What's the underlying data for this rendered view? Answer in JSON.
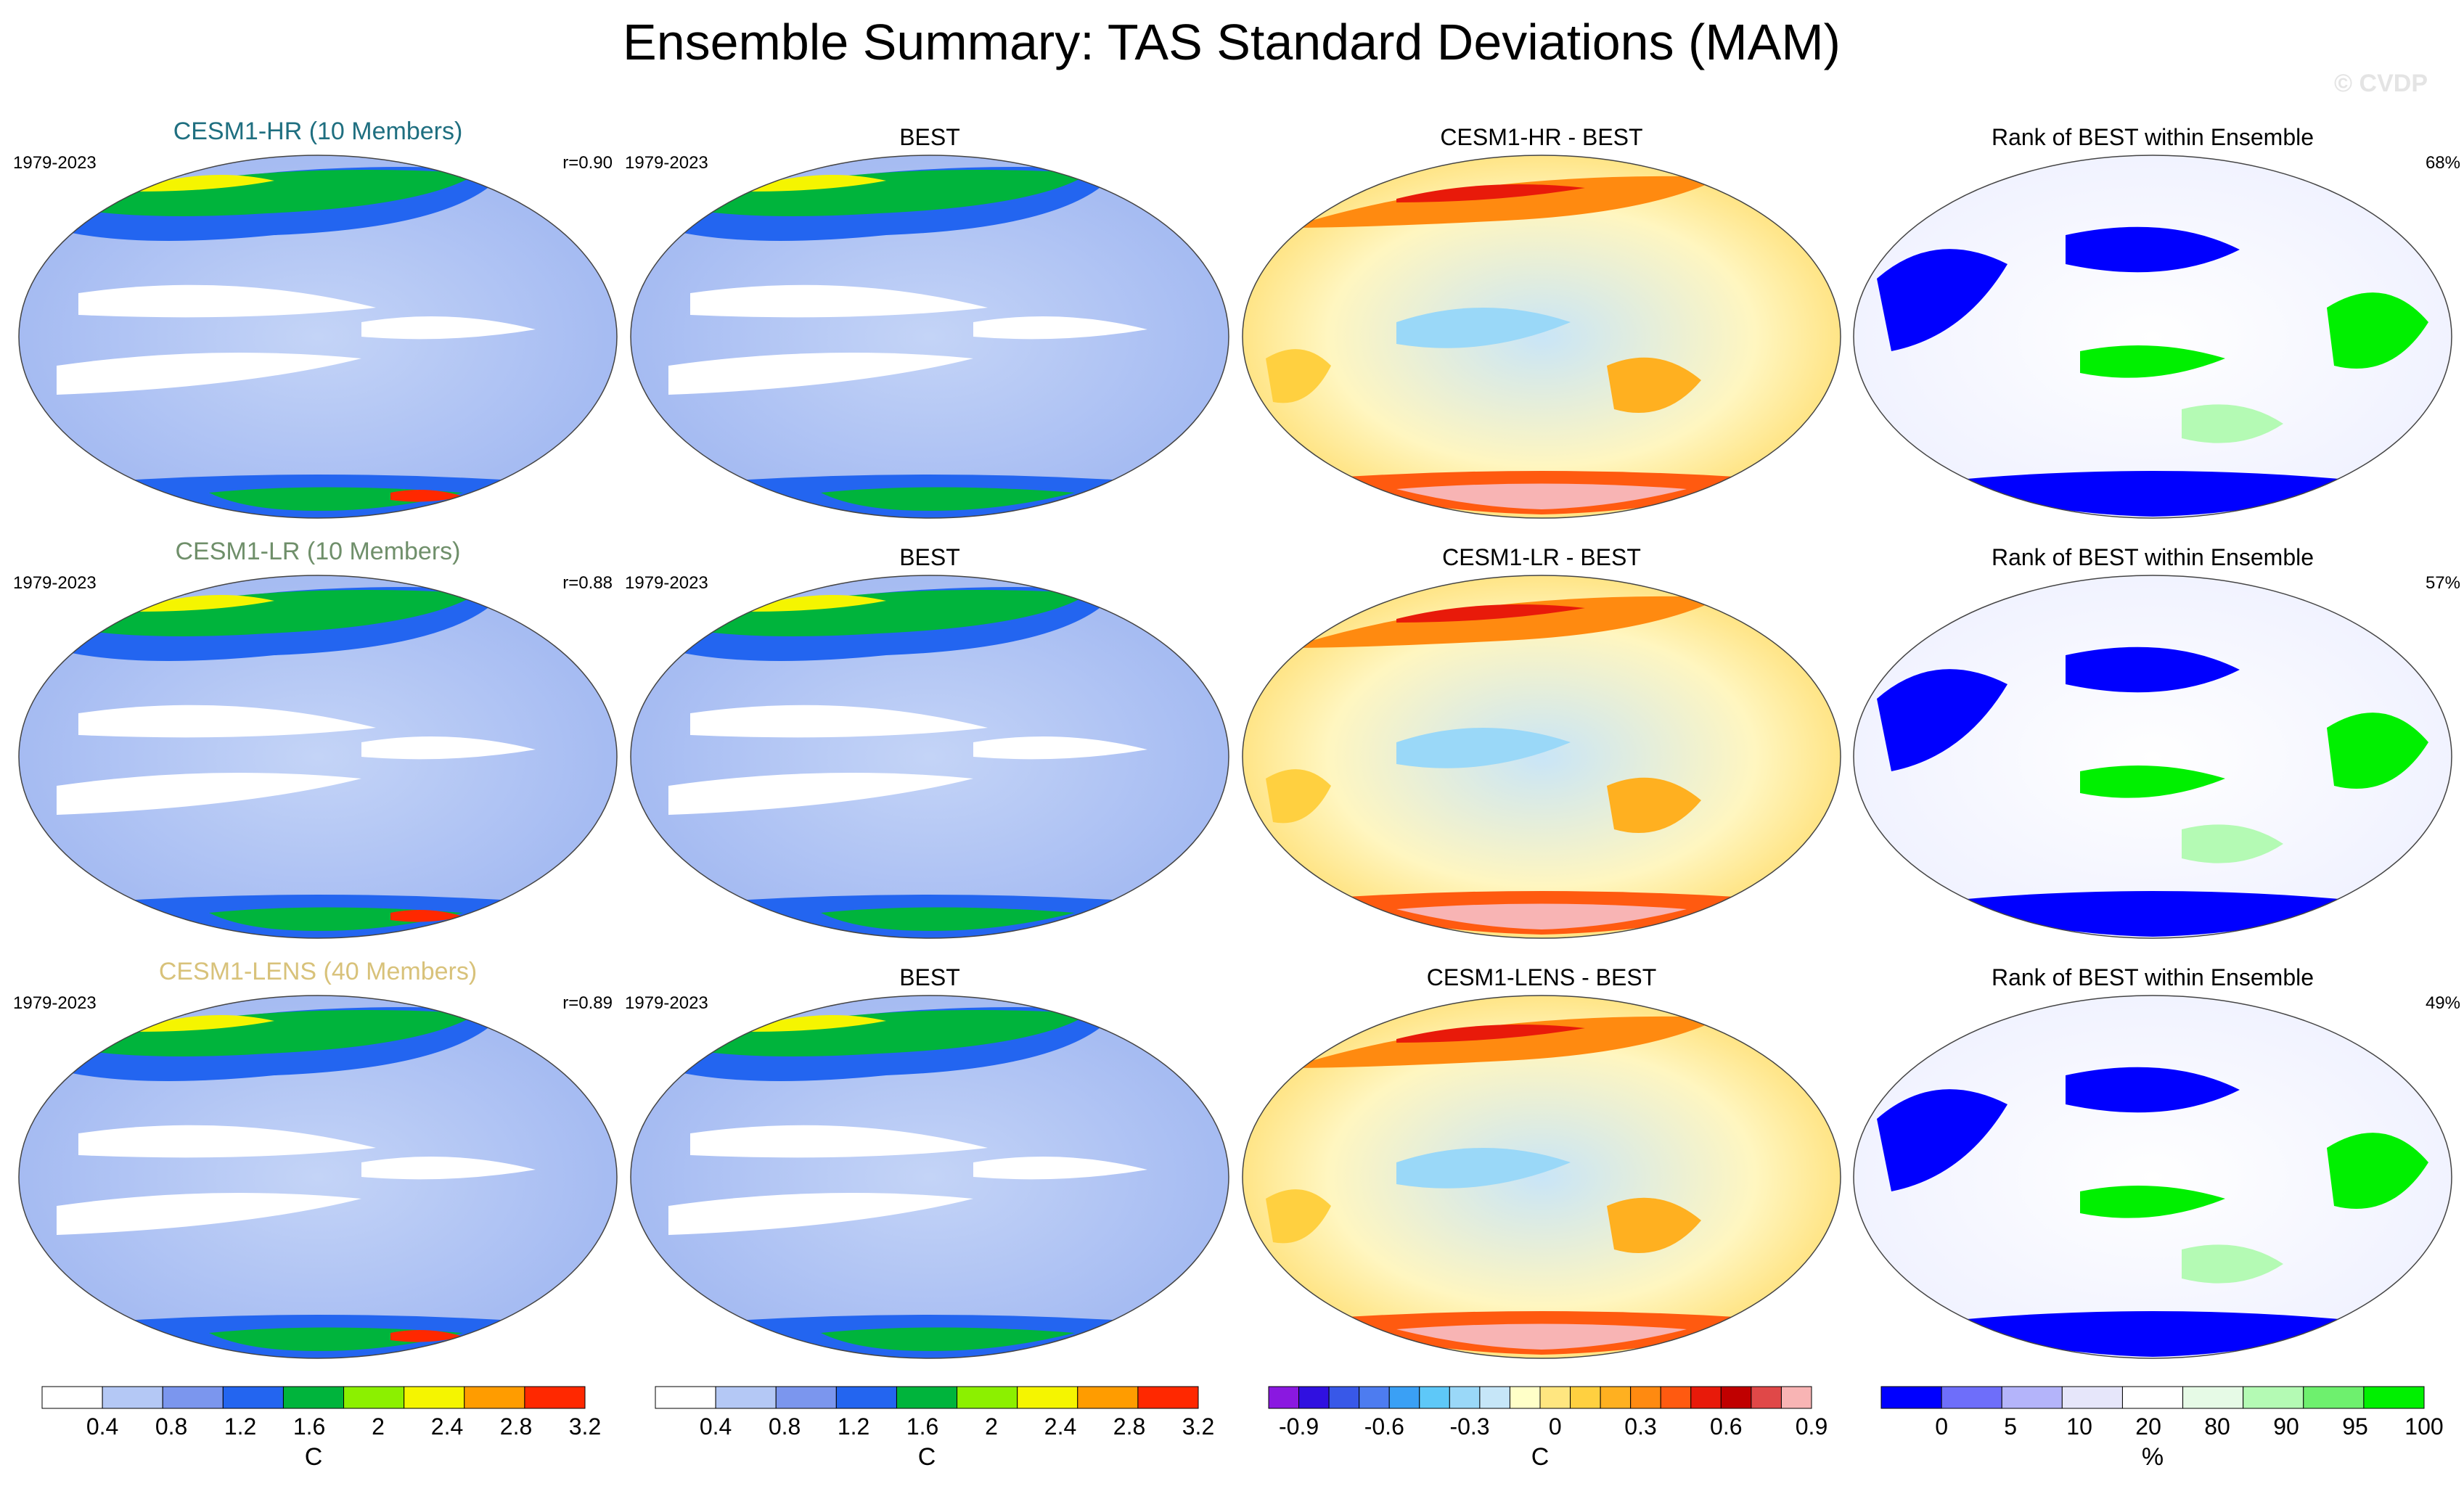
{
  "title": "Ensemble Summary: TAS Standard Deviations (MAM)",
  "watermark": "© CVDP",
  "chart_data": {
    "type": "heatmap",
    "description_rows": 3,
    "description_cols": 4,
    "rows": [
      {
        "model_label": "CESM1-HR (10 Members)",
        "model_color": "#1f6f80",
        "period": "1979-2023",
        "obs_period": "1979-2023",
        "pattern_r": "r=0.90",
        "obs_title": "BEST",
        "diff_title": "CESM1-HR - BEST",
        "rank_title": "Rank of BEST within Ensemble",
        "rank_pct": "68%"
      },
      {
        "model_label": "CESM1-LR (10 Members)",
        "model_color": "#6f8f6a",
        "period": "1979-2023",
        "obs_period": "1979-2023",
        "pattern_r": "r=0.88",
        "obs_title": "BEST",
        "diff_title": "CESM1-LR - BEST",
        "rank_title": "Rank of BEST within Ensemble",
        "rank_pct": "57%"
      },
      {
        "model_label": "CESM1-LENS (40 Members)",
        "model_color": "#d8c27a",
        "period": "1979-2023",
        "obs_period": "1979-2023",
        "pattern_r": "r=0.89",
        "obs_title": "BEST",
        "diff_title": "CESM1-LENS - BEST",
        "rank_title": "Rank of BEST within Ensemble",
        "rank_pct": "49%"
      }
    ],
    "colorbars": [
      {
        "name": "std-dev-model",
        "unit": "C",
        "colors": [
          "#ffffff",
          "#b4c8f5",
          "#7b96ee",
          "#2365f0",
          "#00b43c",
          "#8cf000",
          "#f5f500",
          "#ff9c00",
          "#ff2800"
        ],
        "ticks": [
          "0.4",
          "0.8",
          "1.2",
          "1.6",
          "2",
          "2.4",
          "2.8",
          "3.2"
        ]
      },
      {
        "name": "std-dev-obs",
        "unit": "C",
        "colors": [
          "#ffffff",
          "#b4c8f5",
          "#7b96ee",
          "#2365f0",
          "#00b43c",
          "#8cf000",
          "#f5f500",
          "#ff9c00",
          "#ff2800"
        ],
        "ticks": [
          "0.4",
          "0.8",
          "1.2",
          "1.6",
          "2",
          "2.4",
          "2.8",
          "3.2"
        ]
      },
      {
        "name": "difference",
        "unit": "C",
        "colors": [
          "#8a18e0",
          "#3010e0",
          "#3858e8",
          "#4d7cf0",
          "#3aa0f5",
          "#5ec8f8",
          "#9ad8f8",
          "#c6e6f8",
          "#ffffc8",
          "#ffe680",
          "#ffd040",
          "#ffb020",
          "#ff8a10",
          "#ff5a10",
          "#e81a0a",
          "#c00000",
          "#e04848",
          "#f8b4b4"
        ],
        "ticks": [
          "-0.9",
          "-0.6",
          "-0.3",
          "0",
          "0.3",
          "0.6",
          "0.9"
        ]
      },
      {
        "name": "rank",
        "unit": "%",
        "colors": [
          "#0000ff",
          "#6e6efa",
          "#b4b4fa",
          "#e6e6fa",
          "#ffffff",
          "#e6fae6",
          "#b4fab4",
          "#6ef06e",
          "#00f000"
        ],
        "ticks": [
          "0",
          "5",
          "10",
          "20",
          "80",
          "90",
          "95",
          "100"
        ]
      }
    ]
  }
}
